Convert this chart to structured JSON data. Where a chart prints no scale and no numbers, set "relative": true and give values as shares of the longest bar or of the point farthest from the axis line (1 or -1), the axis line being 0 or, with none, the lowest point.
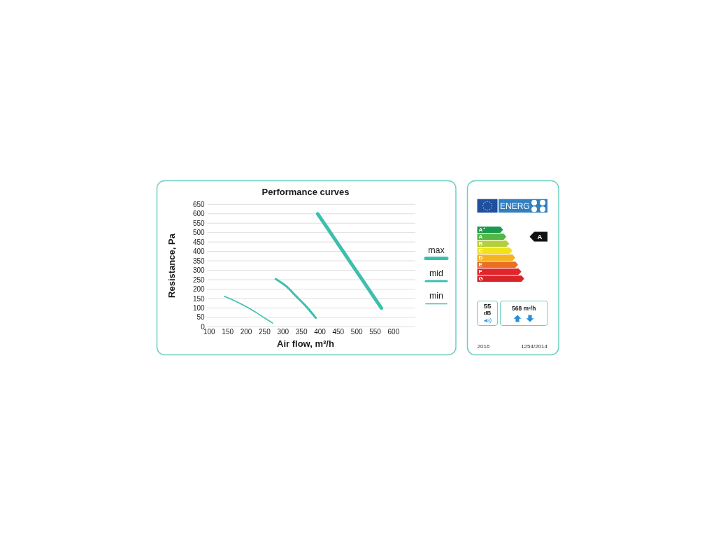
{
  "chart_data": [
    {
      "type": "line",
      "title": "Performance curves",
      "xlabel": "Air flow, m³/h",
      "ylabel": "Resistance, Pa",
      "xlim": [
        95,
        659
      ],
      "ylim": [
        0,
        650
      ],
      "xticks": [
        100,
        150,
        200,
        250,
        300,
        350,
        400,
        450,
        500,
        550,
        600
      ],
      "yticks": [
        0,
        50,
        100,
        150,
        200,
        250,
        300,
        350,
        400,
        450,
        500,
        550,
        600,
        650
      ],
      "grid": "y",
      "legend": "right",
      "line_style": "solid",
      "series": [
        {
          "name": "max",
          "color": "#3dbfad",
          "x": [
            394,
            420,
            450,
            480,
            510,
            540,
            567
          ],
          "values": [
            600,
            525,
            438,
            351,
            264,
            177,
            99
          ]
        },
        {
          "name": "mid",
          "color": "#3dbfad",
          "x": [
            280,
            310,
            335,
            360,
            389
          ],
          "values": [
            254,
            213,
            163,
            114,
            47
          ]
        },
        {
          "name": "min",
          "color": "#3dbfad",
          "x": [
            141,
            170,
            200,
            230,
            255,
            272
          ],
          "values": [
            162,
            137,
            107,
            72,
            40,
            19
          ]
        }
      ]
    },
    {
      "type": "other",
      "annotations": [
        "ENERG",
        "55",
        "dB",
        "568 m³/h",
        "2016",
        "1254/2014"
      ]
    },
    {
      "type": "bar",
      "orientation": "horizontal",
      "relative": true,
      "categories": [
        "A⁺",
        "A",
        "B",
        "C",
        "D",
        "E",
        "F",
        "G"
      ],
      "values": [
        0.55,
        0.62,
        0.68,
        0.75,
        0.81,
        0.87,
        0.94,
        1
      ],
      "colors": [
        "#1b9a4b",
        "#52b747",
        "#b5cf3a",
        "#f0e21d",
        "#f5b321",
        "#ea6f23",
        "#e2252a",
        "#d8232a"
      ],
      "needle": "A"
    }
  ]
}
